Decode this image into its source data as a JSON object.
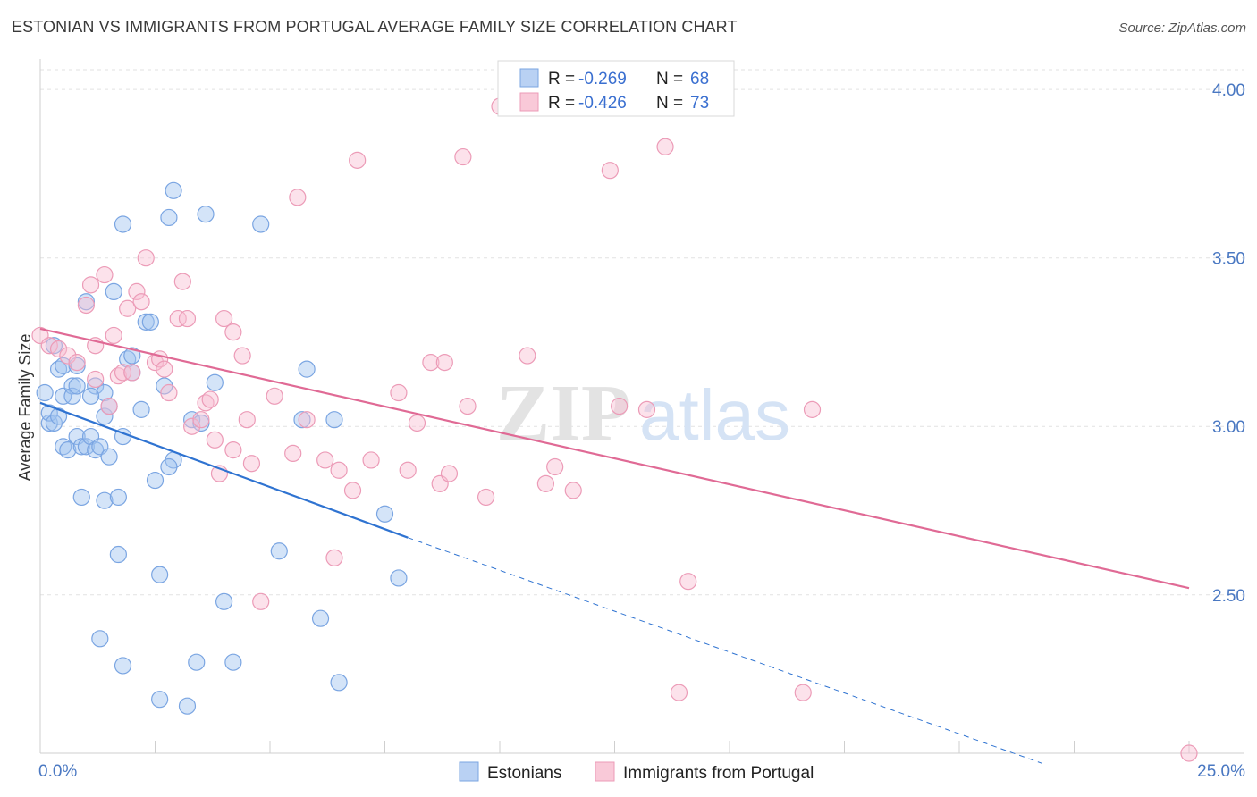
{
  "title": "ESTONIAN VS IMMIGRANTS FROM PORTUGAL AVERAGE FAMILY SIZE CORRELATION CHART",
  "source": "Source: ZipAtlas.com",
  "colors": {
    "blue": "#6f9fe0",
    "blue_line": "#2f73d1",
    "pink": "#ee8fb0",
    "pink_line": "#e06a95",
    "tick": "#4a78c2"
  },
  "chart_data": {
    "type": "scatter",
    "title": "ESTONIAN VS IMMIGRANTS FROM PORTUGAL AVERAGE FAMILY SIZE CORRELATION CHART",
    "xlabel": "",
    "ylabel": "Average Family Size",
    "xlim": [
      0,
      25
    ],
    "ylim": [
      2.03,
      4.08
    ],
    "x_tick_labels": [
      "0.0%",
      "25.0%"
    ],
    "y_ticks": [
      2.5,
      3.0,
      3.5,
      4.0
    ],
    "y_tick_labels": [
      "2.50",
      "3.00",
      "3.50",
      "4.00"
    ],
    "grid": true,
    "legend": [
      {
        "r_label": "R =",
        "r_value": "-0.269",
        "n_label": "N =",
        "n_value": "68"
      },
      {
        "r_label": "R =",
        "r_value": "-0.426",
        "n_label": "N =",
        "n_value": "73"
      }
    ],
    "series": [
      {
        "name": "Estonians",
        "color": "#6f9fe0",
        "trend": {
          "x0": 0.0,
          "y0": 3.07,
          "x1": 8.0,
          "y1": 2.67,
          "dashed_to_x": 21.8,
          "dashed_to_y": 2.0
        },
        "points": [
          [
            0.1,
            3.1
          ],
          [
            0.2,
            3.01
          ],
          [
            0.2,
            3.04
          ],
          [
            0.3,
            3.01
          ],
          [
            0.4,
            3.17
          ],
          [
            0.4,
            3.03
          ],
          [
            0.5,
            3.18
          ],
          [
            0.5,
            2.94
          ],
          [
            0.5,
            3.09
          ],
          [
            0.6,
            2.93
          ],
          [
            0.7,
            3.12
          ],
          [
            0.7,
            3.09
          ],
          [
            0.8,
            2.97
          ],
          [
            0.8,
            3.12
          ],
          [
            0.9,
            2.94
          ],
          [
            1.0,
            2.94
          ],
          [
            0.9,
            2.79
          ],
          [
            1.1,
            2.97
          ],
          [
            1.2,
            2.93
          ],
          [
            1.3,
            2.94
          ],
          [
            1.2,
            3.12
          ],
          [
            1.0,
            3.37
          ],
          [
            1.4,
            3.03
          ],
          [
            1.4,
            3.1
          ],
          [
            1.5,
            3.06
          ],
          [
            1.3,
            2.37
          ],
          [
            1.4,
            2.78
          ],
          [
            1.6,
            3.4
          ],
          [
            1.8,
            3.6
          ],
          [
            1.9,
            3.2
          ],
          [
            1.7,
            2.62
          ],
          [
            1.7,
            2.79
          ],
          [
            1.8,
            2.29
          ],
          [
            1.5,
            2.91
          ],
          [
            2.0,
            3.21
          ],
          [
            2.0,
            3.16
          ],
          [
            2.2,
            3.05
          ],
          [
            2.3,
            3.31
          ],
          [
            2.5,
            2.84
          ],
          [
            2.6,
            2.56
          ],
          [
            2.6,
            2.19
          ],
          [
            2.8,
            3.62
          ],
          [
            2.7,
            3.12
          ],
          [
            2.9,
            2.9
          ],
          [
            2.9,
            3.7
          ],
          [
            3.2,
            2.17
          ],
          [
            3.3,
            3.02
          ],
          [
            3.4,
            2.3
          ],
          [
            3.6,
            3.63
          ],
          [
            3.8,
            3.13
          ],
          [
            4.0,
            2.48
          ],
          [
            4.2,
            2.3
          ],
          [
            4.8,
            3.6
          ],
          [
            5.2,
            2.63
          ],
          [
            5.7,
            3.02
          ],
          [
            5.8,
            3.17
          ],
          [
            6.1,
            2.43
          ],
          [
            6.5,
            2.24
          ],
          [
            6.4,
            3.02
          ],
          [
            7.5,
            2.74
          ],
          [
            7.8,
            2.55
          ],
          [
            3.5,
            3.01
          ],
          [
            2.4,
            3.31
          ],
          [
            0.8,
            3.18
          ],
          [
            2.8,
            2.88
          ],
          [
            1.1,
            3.09
          ],
          [
            1.8,
            2.97
          ],
          [
            0.3,
            3.24
          ]
        ]
      },
      {
        "name": "Immigrants from Portugal",
        "color": "#ee8fb0",
        "trend": {
          "x0": 0.0,
          "y0": 3.29,
          "x1": 25.0,
          "y1": 2.52
        },
        "points": [
          [
            0.0,
            3.27
          ],
          [
            0.2,
            3.24
          ],
          [
            0.4,
            3.23
          ],
          [
            0.6,
            3.21
          ],
          [
            0.8,
            3.19
          ],
          [
            1.0,
            3.36
          ],
          [
            1.1,
            3.42
          ],
          [
            1.2,
            3.24
          ],
          [
            1.2,
            3.14
          ],
          [
            1.4,
            3.45
          ],
          [
            1.5,
            3.06
          ],
          [
            1.6,
            3.27
          ],
          [
            1.7,
            3.15
          ],
          [
            1.8,
            3.16
          ],
          [
            1.9,
            3.35
          ],
          [
            2.0,
            3.16
          ],
          [
            2.1,
            3.4
          ],
          [
            2.2,
            3.37
          ],
          [
            2.3,
            3.5
          ],
          [
            2.5,
            3.19
          ],
          [
            2.6,
            3.2
          ],
          [
            2.7,
            3.17
          ],
          [
            2.8,
            3.1
          ],
          [
            3.0,
            3.32
          ],
          [
            3.1,
            3.43
          ],
          [
            3.2,
            3.32
          ],
          [
            3.3,
            3.0
          ],
          [
            3.5,
            3.02
          ],
          [
            3.6,
            3.07
          ],
          [
            3.7,
            3.08
          ],
          [
            3.8,
            2.96
          ],
          [
            3.9,
            2.86
          ],
          [
            4.0,
            3.32
          ],
          [
            4.2,
            2.93
          ],
          [
            4.4,
            3.21
          ],
          [
            4.5,
            3.02
          ],
          [
            4.6,
            2.89
          ],
          [
            4.8,
            2.48
          ],
          [
            5.1,
            3.09
          ],
          [
            5.5,
            2.92
          ],
          [
            5.6,
            3.68
          ],
          [
            5.8,
            3.02
          ],
          [
            6.2,
            2.9
          ],
          [
            6.4,
            2.61
          ],
          [
            6.5,
            2.87
          ],
          [
            6.9,
            3.79
          ],
          [
            6.8,
            2.81
          ],
          [
            7.2,
            2.9
          ],
          [
            7.8,
            3.1
          ],
          [
            8.0,
            2.87
          ],
          [
            8.2,
            3.01
          ],
          [
            8.5,
            3.19
          ],
          [
            8.8,
            3.19
          ],
          [
            8.7,
            2.83
          ],
          [
            8.9,
            2.86
          ],
          [
            9.2,
            3.8
          ],
          [
            9.3,
            3.06
          ],
          [
            9.7,
            2.79
          ],
          [
            10.0,
            3.95
          ],
          [
            10.6,
            3.21
          ],
          [
            11.0,
            2.83
          ],
          [
            11.2,
            2.88
          ],
          [
            11.6,
            2.81
          ],
          [
            12.4,
            3.76
          ],
          [
            12.6,
            3.06
          ],
          [
            13.2,
            3.05
          ],
          [
            13.6,
            3.83
          ],
          [
            13.9,
            2.21
          ],
          [
            14.1,
            2.54
          ],
          [
            16.6,
            2.21
          ],
          [
            16.8,
            3.05
          ],
          [
            25.0,
            2.03
          ],
          [
            4.2,
            3.28
          ]
        ]
      }
    ],
    "watermark": "ZIPatlas"
  },
  "bottom_legend": [
    "Estonians",
    "Immigrants from Portugal"
  ]
}
